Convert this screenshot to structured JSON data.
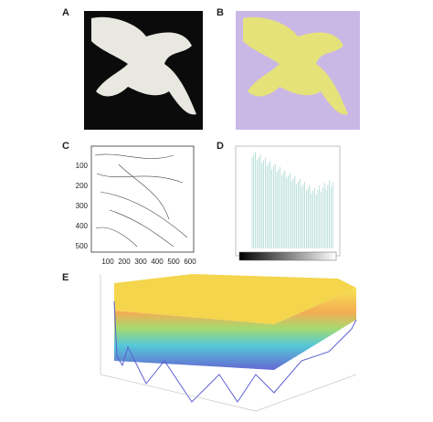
{
  "panels": [
    {
      "label": "A"
    },
    {
      "label": "B"
    },
    {
      "label": "C"
    },
    {
      "label": "D"
    },
    {
      "label": "E"
    }
  ],
  "panel_c": {
    "xticks": [
      100,
      200,
      300,
      400,
      500,
      600
    ],
    "yticks": [
      100,
      200,
      300,
      400,
      500
    ]
  }
}
